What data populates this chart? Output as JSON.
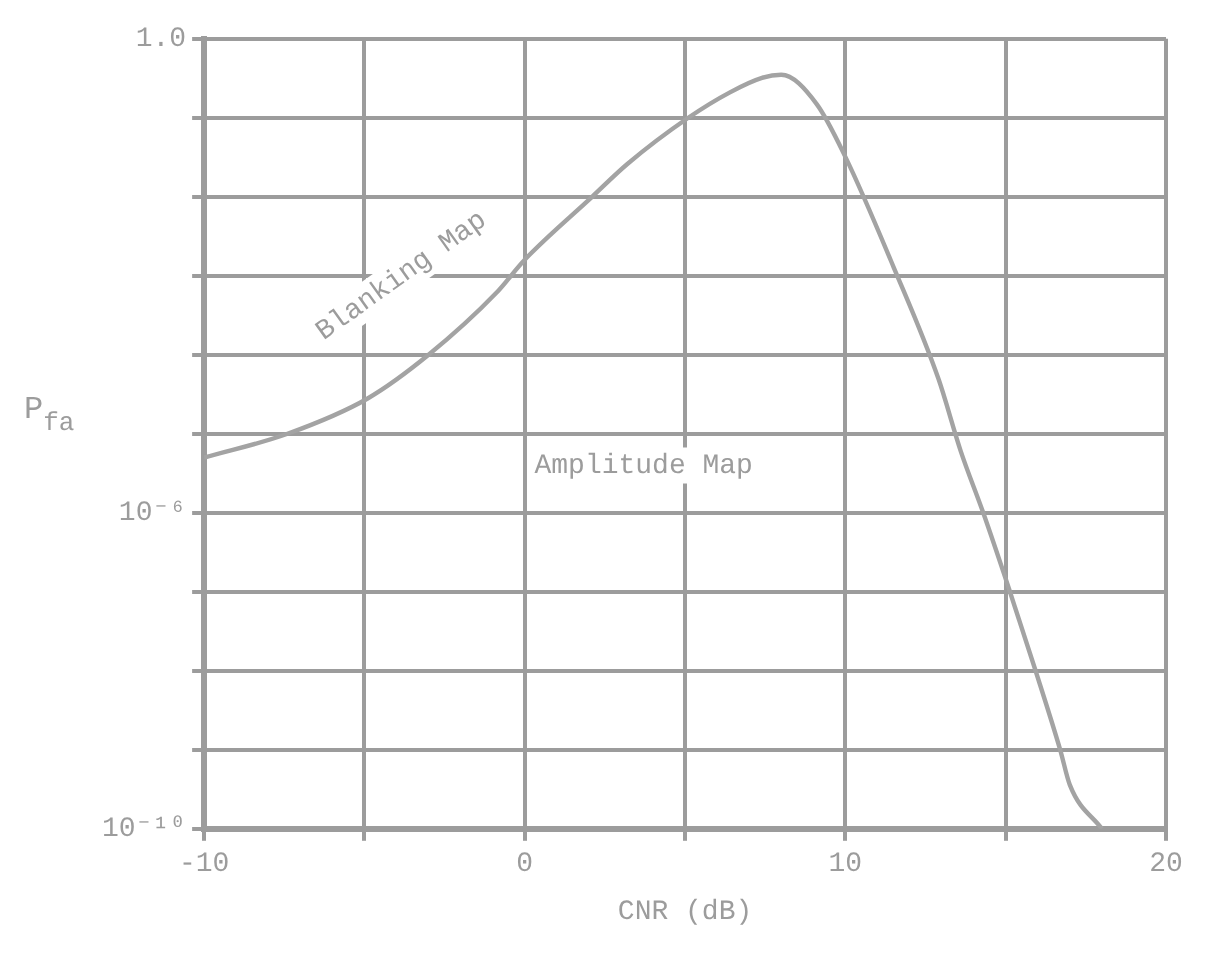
{
  "chart_data": {
    "type": "line",
    "xlabel": "CNR (dB)",
    "ylabel": "P$_{fa}$",
    "log": "y",
    "grid": true,
    "legend": false,
    "marker": "none",
    "line_style": "solid",
    "xlim": [
      -10,
      20
    ],
    "xticks": [
      -10,
      {
        "value": -5,
        "label": null
      },
      0,
      {
        "value": 5,
        "label": null
      },
      10,
      {
        "value": 15,
        "label": null
      },
      20
    ],
    "ylim": [
      1e-10,
      1
    ],
    "yticks": [
      {
        "value": 1e-10,
        "label": "10⁻¹⁰"
      },
      {
        "value": 1e-09,
        "label": null
      },
      {
        "value": 1e-08,
        "label": null
      },
      {
        "value": 1e-07,
        "label": null
      },
      {
        "value": 1e-06,
        "label": "10⁻⁶"
      },
      {
        "value": 1e-05,
        "label": null
      },
      {
        "value": 0.0001,
        "label": null
      },
      {
        "value": 0.001,
        "label": null
      },
      {
        "value": 0.01,
        "label": null
      },
      {
        "value": 0.1,
        "label": null
      },
      {
        "value": 1,
        "label": "1.0"
      }
    ],
    "annotations": [
      "Blanking Map",
      "Amplitude Map"
    ],
    "series": [
      {
        "color": "#a3a3a3",
        "x": [
          -10,
          -7.4,
          -4.9,
          -3,
          -0.9,
          0,
          2.1,
          3.2,
          5.1,
          6.4,
          7.4,
          8,
          9.1,
          10,
          11.5,
          12.9,
          13.6,
          14.3,
          15.1,
          15.9,
          16.7,
          17,
          18
        ],
        "values": [
          5e-06,
          1e-05,
          2.8e-05,
          0.0001,
          0.0006,
          0.0016,
          0.01,
          0.026,
          0.1,
          0.21,
          0.32,
          0.35,
          0.15,
          0.032,
          0.0013,
          5e-05,
          6e-06,
          1e-06,
          1.1e-07,
          1.1e-08,
          1e-09,
          3.6e-10,
          1e-10
        ]
      }
    ]
  }
}
